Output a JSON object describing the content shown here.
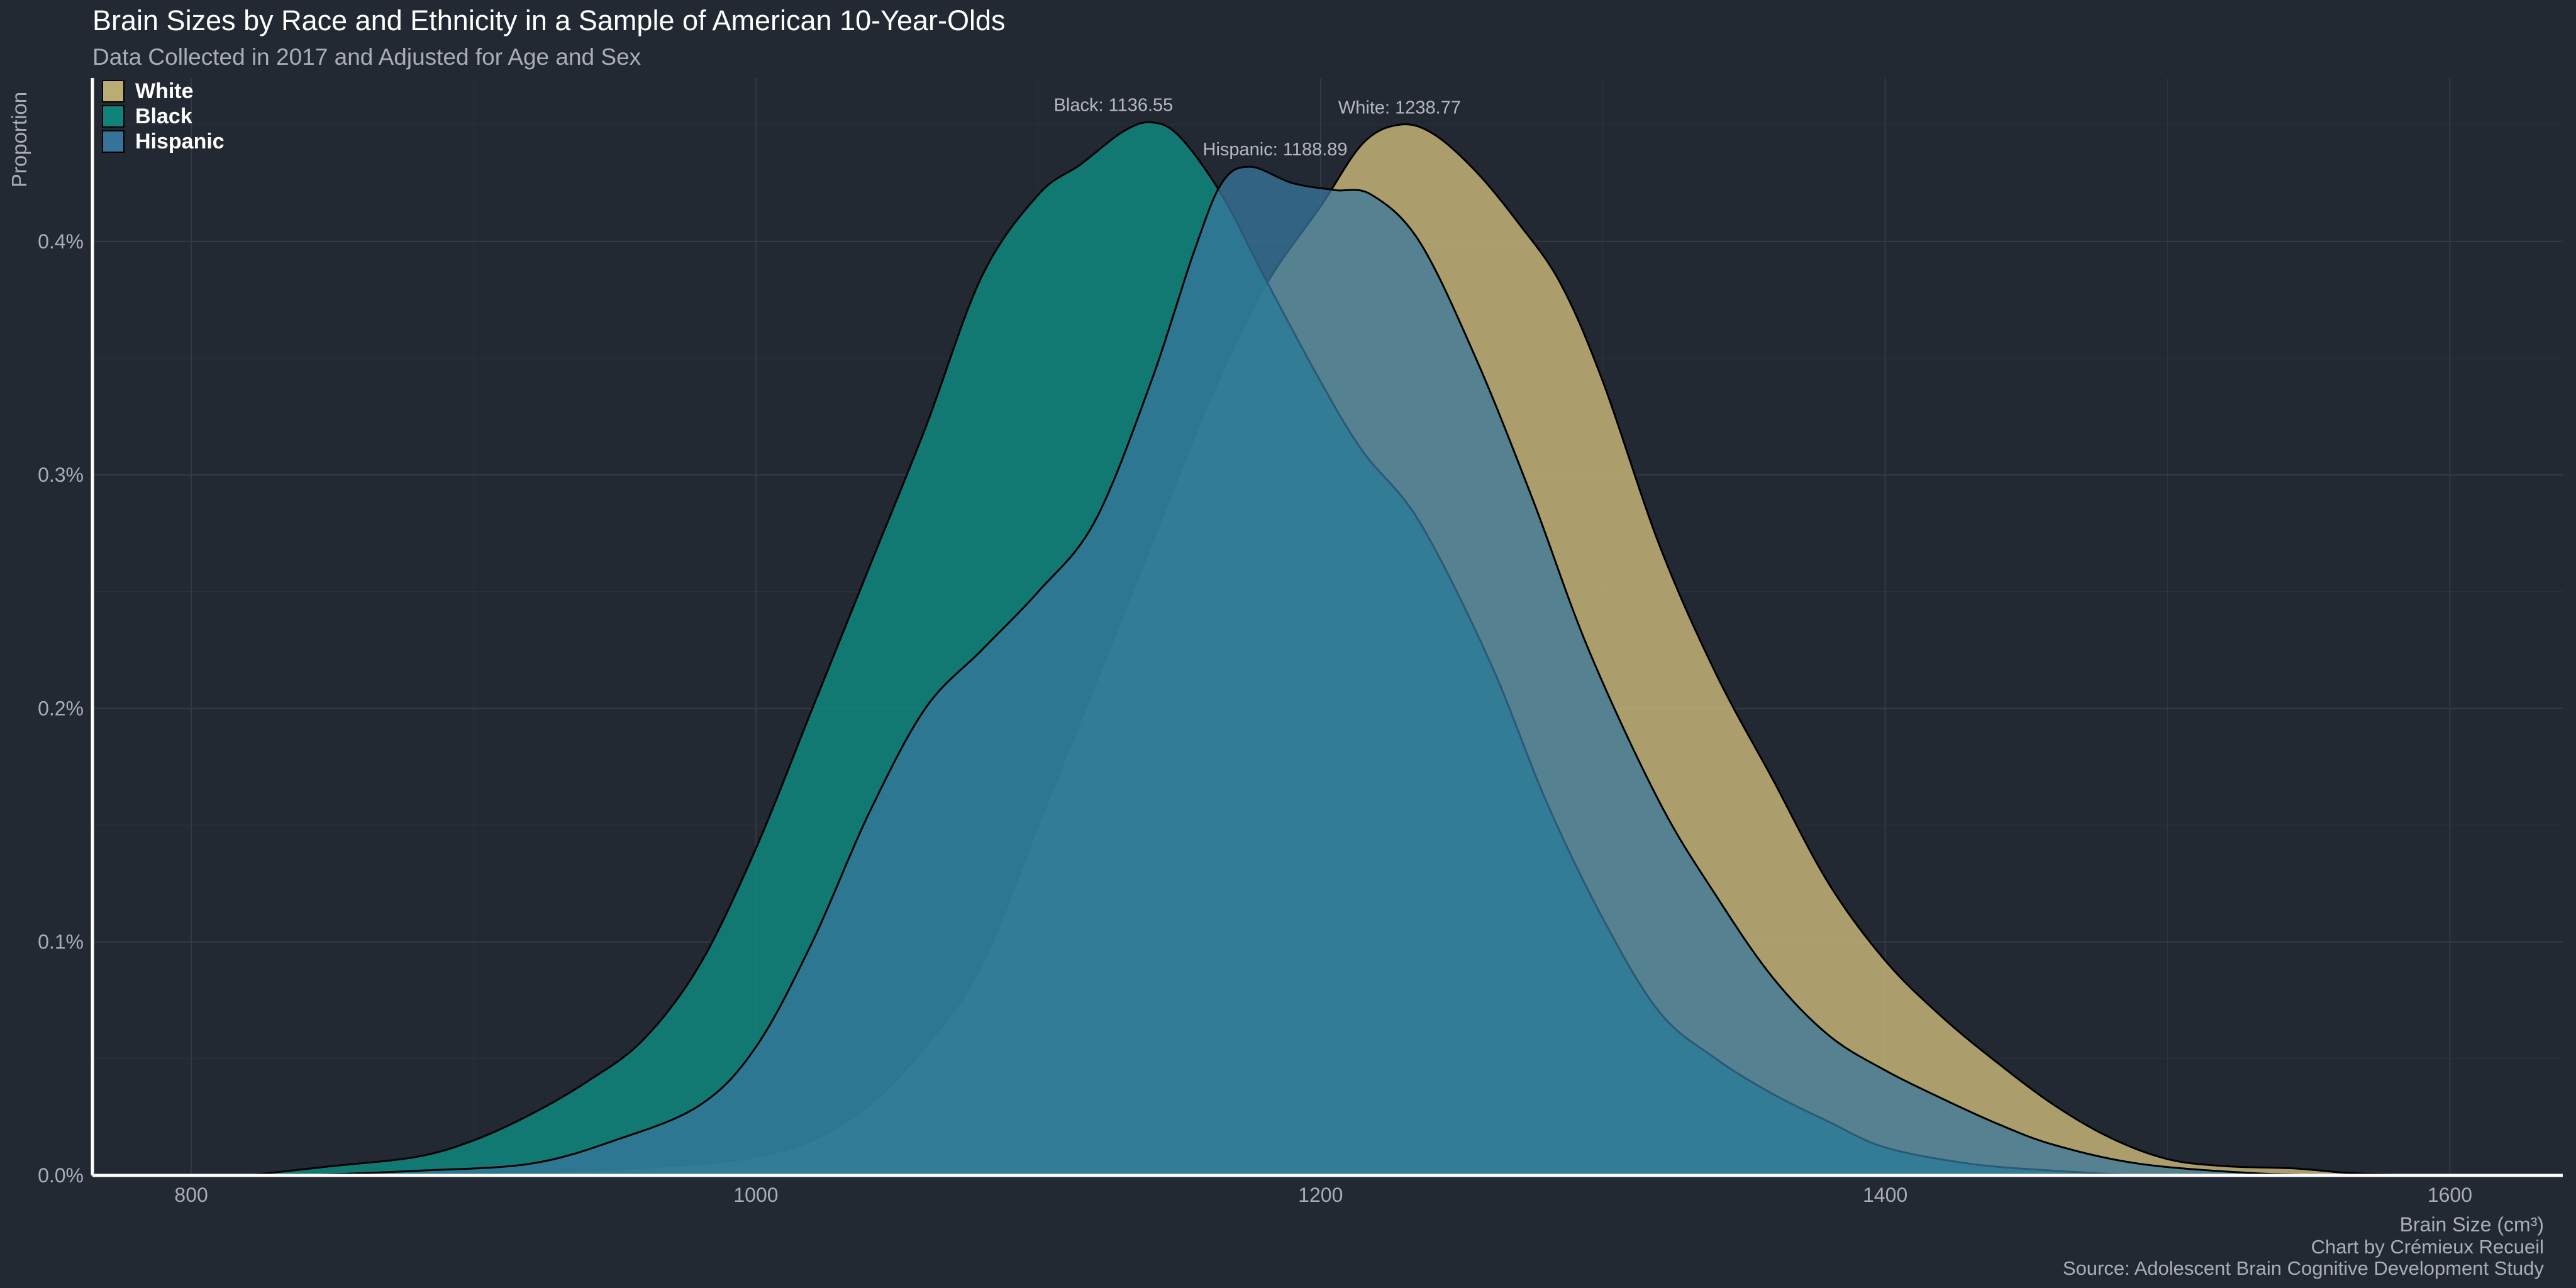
{
  "chart_data": {
    "type": "area",
    "title": "Brain Sizes by Race and Ethnicity in a Sample of American 10-Year-Olds",
    "subtitle": "Data Collected in 2017 and Adjusted for Age and Sex",
    "xlabel": "Brain Size (cm³)",
    "ylabel": "Proportion",
    "captions": [
      "Chart by Crémieux Recueil",
      "Source: Adolescent Brain Cognitive Development Study"
    ],
    "xlim": [
      765,
      1640
    ],
    "ylim": [
      0,
      0.47
    ],
    "x_ticks": [
      800,
      1000,
      1200,
      1400,
      1600
    ],
    "y_ticks": [
      0,
      0.1,
      0.2,
      0.3,
      0.4
    ],
    "y_tick_labels": [
      "0.0%",
      "0.1%",
      "0.2%",
      "0.3%",
      "0.4%"
    ],
    "grid": true,
    "legend_position": "top-left",
    "colors": {
      "background": "#232933",
      "grid": "#323a47",
      "axis_text": "#a9aeb6",
      "title": "#ffffff",
      "subtitle": "#a9aeb6",
      "label": "#b4b8bf"
    },
    "series": [
      {
        "name": "White",
        "fill": "#c4b377",
        "opacity": 0.85,
        "stroke": "#000000",
        "mean_label": "White: 1238.77",
        "points": [
          [
            840,
            0
          ],
          [
            900,
            0.001
          ],
          [
            940,
            0.002
          ],
          [
            980,
            0.005
          ],
          [
            1000,
            0.008
          ],
          [
            1020,
            0.015
          ],
          [
            1040,
            0.03
          ],
          [
            1060,
            0.055
          ],
          [
            1080,
            0.09
          ],
          [
            1100,
            0.15
          ],
          [
            1120,
            0.21
          ],
          [
            1140,
            0.27
          ],
          [
            1160,
            0.33
          ],
          [
            1180,
            0.38
          ],
          [
            1200,
            0.415
          ],
          [
            1215,
            0.442
          ],
          [
            1228,
            0.45
          ],
          [
            1240,
            0.446
          ],
          [
            1255,
            0.43
          ],
          [
            1270,
            0.408
          ],
          [
            1285,
            0.382
          ],
          [
            1300,
            0.34
          ],
          [
            1320,
            0.27
          ],
          [
            1340,
            0.215
          ],
          [
            1360,
            0.17
          ],
          [
            1380,
            0.125
          ],
          [
            1400,
            0.092
          ],
          [
            1420,
            0.068
          ],
          [
            1440,
            0.048
          ],
          [
            1460,
            0.03
          ],
          [
            1480,
            0.016
          ],
          [
            1500,
            0.007
          ],
          [
            1520,
            0.004
          ],
          [
            1545,
            0.003
          ],
          [
            1565,
            0.001
          ],
          [
            1590,
            0
          ]
        ]
      },
      {
        "name": "Black",
        "fill": "#0f877e",
        "opacity": 0.85,
        "stroke": "#000000",
        "mean_label": "Black: 1136.55",
        "points": [
          [
            820,
            0
          ],
          [
            850,
            0.004
          ],
          [
            880,
            0.008
          ],
          [
            900,
            0.015
          ],
          [
            920,
            0.026
          ],
          [
            940,
            0.04
          ],
          [
            960,
            0.058
          ],
          [
            980,
            0.09
          ],
          [
            1000,
            0.14
          ],
          [
            1020,
            0.2
          ],
          [
            1040,
            0.26
          ],
          [
            1060,
            0.32
          ],
          [
            1080,
            0.385
          ],
          [
            1100,
            0.42
          ],
          [
            1115,
            0.433
          ],
          [
            1130,
            0.447
          ],
          [
            1140,
            0.451
          ],
          [
            1150,
            0.445
          ],
          [
            1165,
            0.42
          ],
          [
            1180,
            0.385
          ],
          [
            1200,
            0.34
          ],
          [
            1215,
            0.31
          ],
          [
            1235,
            0.28
          ],
          [
            1260,
            0.22
          ],
          [
            1280,
            0.16
          ],
          [
            1300,
            0.11
          ],
          [
            1320,
            0.07
          ],
          [
            1340,
            0.05
          ],
          [
            1360,
            0.035
          ],
          [
            1380,
            0.023
          ],
          [
            1400,
            0.012
          ],
          [
            1430,
            0.005
          ],
          [
            1460,
            0.002
          ],
          [
            1490,
            0
          ]
        ]
      },
      {
        "name": "Hispanic",
        "fill": "#38779e",
        "opacity": 0.75,
        "stroke": "#000000",
        "mean_label": "Hispanic: 1188.89",
        "points": [
          [
            840,
            0
          ],
          [
            880,
            0.002
          ],
          [
            920,
            0.005
          ],
          [
            950,
            0.015
          ],
          [
            980,
            0.03
          ],
          [
            1000,
            0.055
          ],
          [
            1020,
            0.1
          ],
          [
            1040,
            0.155
          ],
          [
            1060,
            0.2
          ],
          [
            1080,
            0.225
          ],
          [
            1100,
            0.25
          ],
          [
            1120,
            0.28
          ],
          [
            1140,
            0.34
          ],
          [
            1155,
            0.395
          ],
          [
            1165,
            0.425
          ],
          [
            1175,
            0.432
          ],
          [
            1190,
            0.425
          ],
          [
            1205,
            0.422
          ],
          [
            1218,
            0.42
          ],
          [
            1235,
            0.4
          ],
          [
            1255,
            0.35
          ],
          [
            1275,
            0.29
          ],
          [
            1295,
            0.225
          ],
          [
            1320,
            0.16
          ],
          [
            1340,
            0.12
          ],
          [
            1360,
            0.085
          ],
          [
            1380,
            0.06
          ],
          [
            1400,
            0.045
          ],
          [
            1420,
            0.033
          ],
          [
            1440,
            0.022
          ],
          [
            1460,
            0.013
          ],
          [
            1490,
            0.005
          ],
          [
            1530,
            0.001
          ],
          [
            1560,
            0
          ]
        ]
      }
    ]
  }
}
